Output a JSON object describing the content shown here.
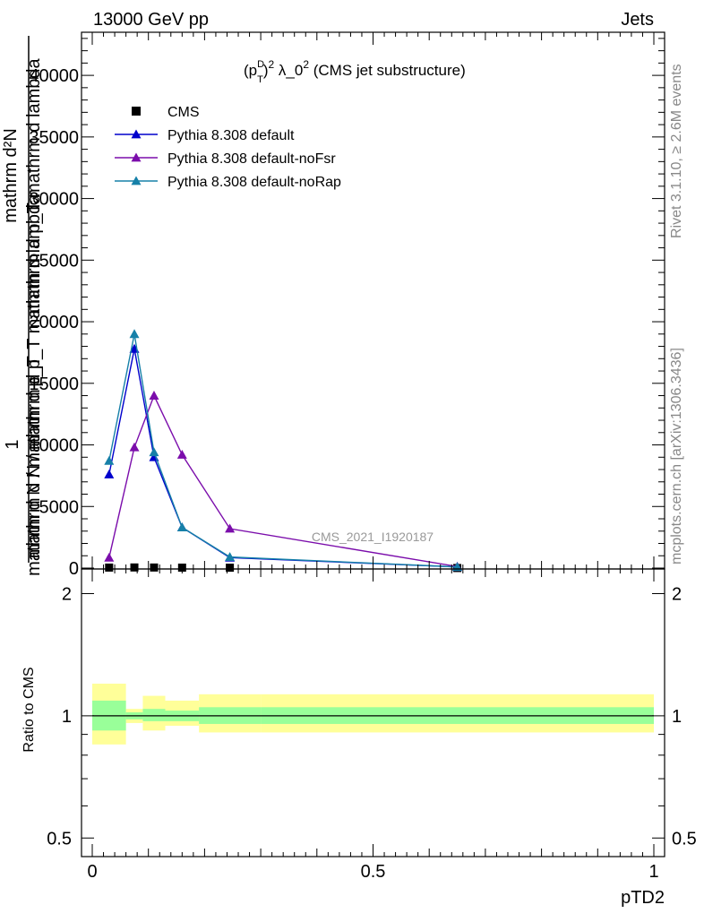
{
  "header": {
    "energy_label": "13000 GeV pp",
    "process_label": "Jets"
  },
  "side_labels": {
    "rivet": "Rivet 3.1.10, ≥ 2.6M events",
    "mcplots": "mcplots.cern.ch [arXiv:1306.3436]"
  },
  "main_plot": {
    "title": "(p_T^D)^2 λ_0^2 (CMS jet substructure)",
    "title_parts": {
      "p": "(p",
      "sup": "D",
      "sub": "T",
      "close": ")",
      "sup2": "2",
      "mid": " λ_0",
      "sup3": "2",
      "tail": " (CMS jet substructure)"
    },
    "ylabel_numerator": "mathrm d²N",
    "ylabel_numerator_overlay": "mathrm d p_T mathrm d lambda",
    "ylabel_denominator": "mathrm d N / mathrm d p_T",
    "ylabel_denominator_overlay": "mathrm d N / mathrm d p_T mathrm d lambda",
    "ylabel_one": "1",
    "watermark": "CMS_2021_I1920187",
    "y_ticks": [
      "0",
      "5000",
      "10000",
      "15000",
      "20000",
      "25000",
      "30000",
      "35000",
      "40000"
    ],
    "legend": [
      "CMS",
      "Pythia 8.308 default",
      "Pythia 8.308 default-noFsr",
      "Pythia 8.308 default-noRap"
    ]
  },
  "ratio_plot": {
    "ylabel": "Ratio to CMS",
    "y_ticks": [
      "0.5",
      "1",
      "2"
    ]
  },
  "x_axis": {
    "label": "pTD2",
    "ticks": [
      "0",
      "0.5",
      "1"
    ]
  },
  "chart_data": {
    "type": "line",
    "xlim": [
      0,
      1
    ],
    "ylim": [
      0,
      43500
    ],
    "ratio_ylim": [
      0.45,
      2.3
    ],
    "ratio_log_scale": true,
    "legend_position": "top-left",
    "bin_edges": [
      0.0,
      0.06,
      0.09,
      0.13,
      0.19,
      0.3,
      1.0
    ],
    "x": [
      0.03,
      0.075,
      0.11,
      0.16,
      0.245,
      0.65
    ],
    "series": [
      {
        "name": "CMS",
        "color": "#000000",
        "marker": "square",
        "values": [
          40,
          50,
          45,
          35,
          30,
          5
        ]
      },
      {
        "name": "Pythia 8.308 default",
        "color": "#0000cc",
        "marker": "triangle",
        "values": [
          7600,
          17800,
          9000,
          3300,
          850,
          90
        ]
      },
      {
        "name": "Pythia 8.308 default-noFsr",
        "color": "#7b0dab",
        "marker": "triangle",
        "values": [
          850,
          9800,
          14000,
          9200,
          3200,
          120
        ]
      },
      {
        "name": "Pythia 8.308 default-noRap",
        "color": "#1680a8",
        "marker": "triangle",
        "values": [
          8700,
          19000,
          9400,
          3300,
          900,
          95
        ]
      }
    ],
    "ratio_bands": {
      "green_low": [
        0.92,
        0.98,
        0.97,
        0.97,
        0.955,
        0.955
      ],
      "green_high": [
        1.09,
        1.02,
        1.04,
        1.03,
        1.05,
        1.05
      ],
      "yellow_low": [
        0.85,
        0.96,
        0.92,
        0.945,
        0.91,
        0.91
      ],
      "yellow_high": [
        1.2,
        1.04,
        1.12,
        1.09,
        1.13,
        1.13
      ]
    },
    "band_colors": {
      "green": "#99ff99",
      "yellow": "#ffff99"
    }
  }
}
